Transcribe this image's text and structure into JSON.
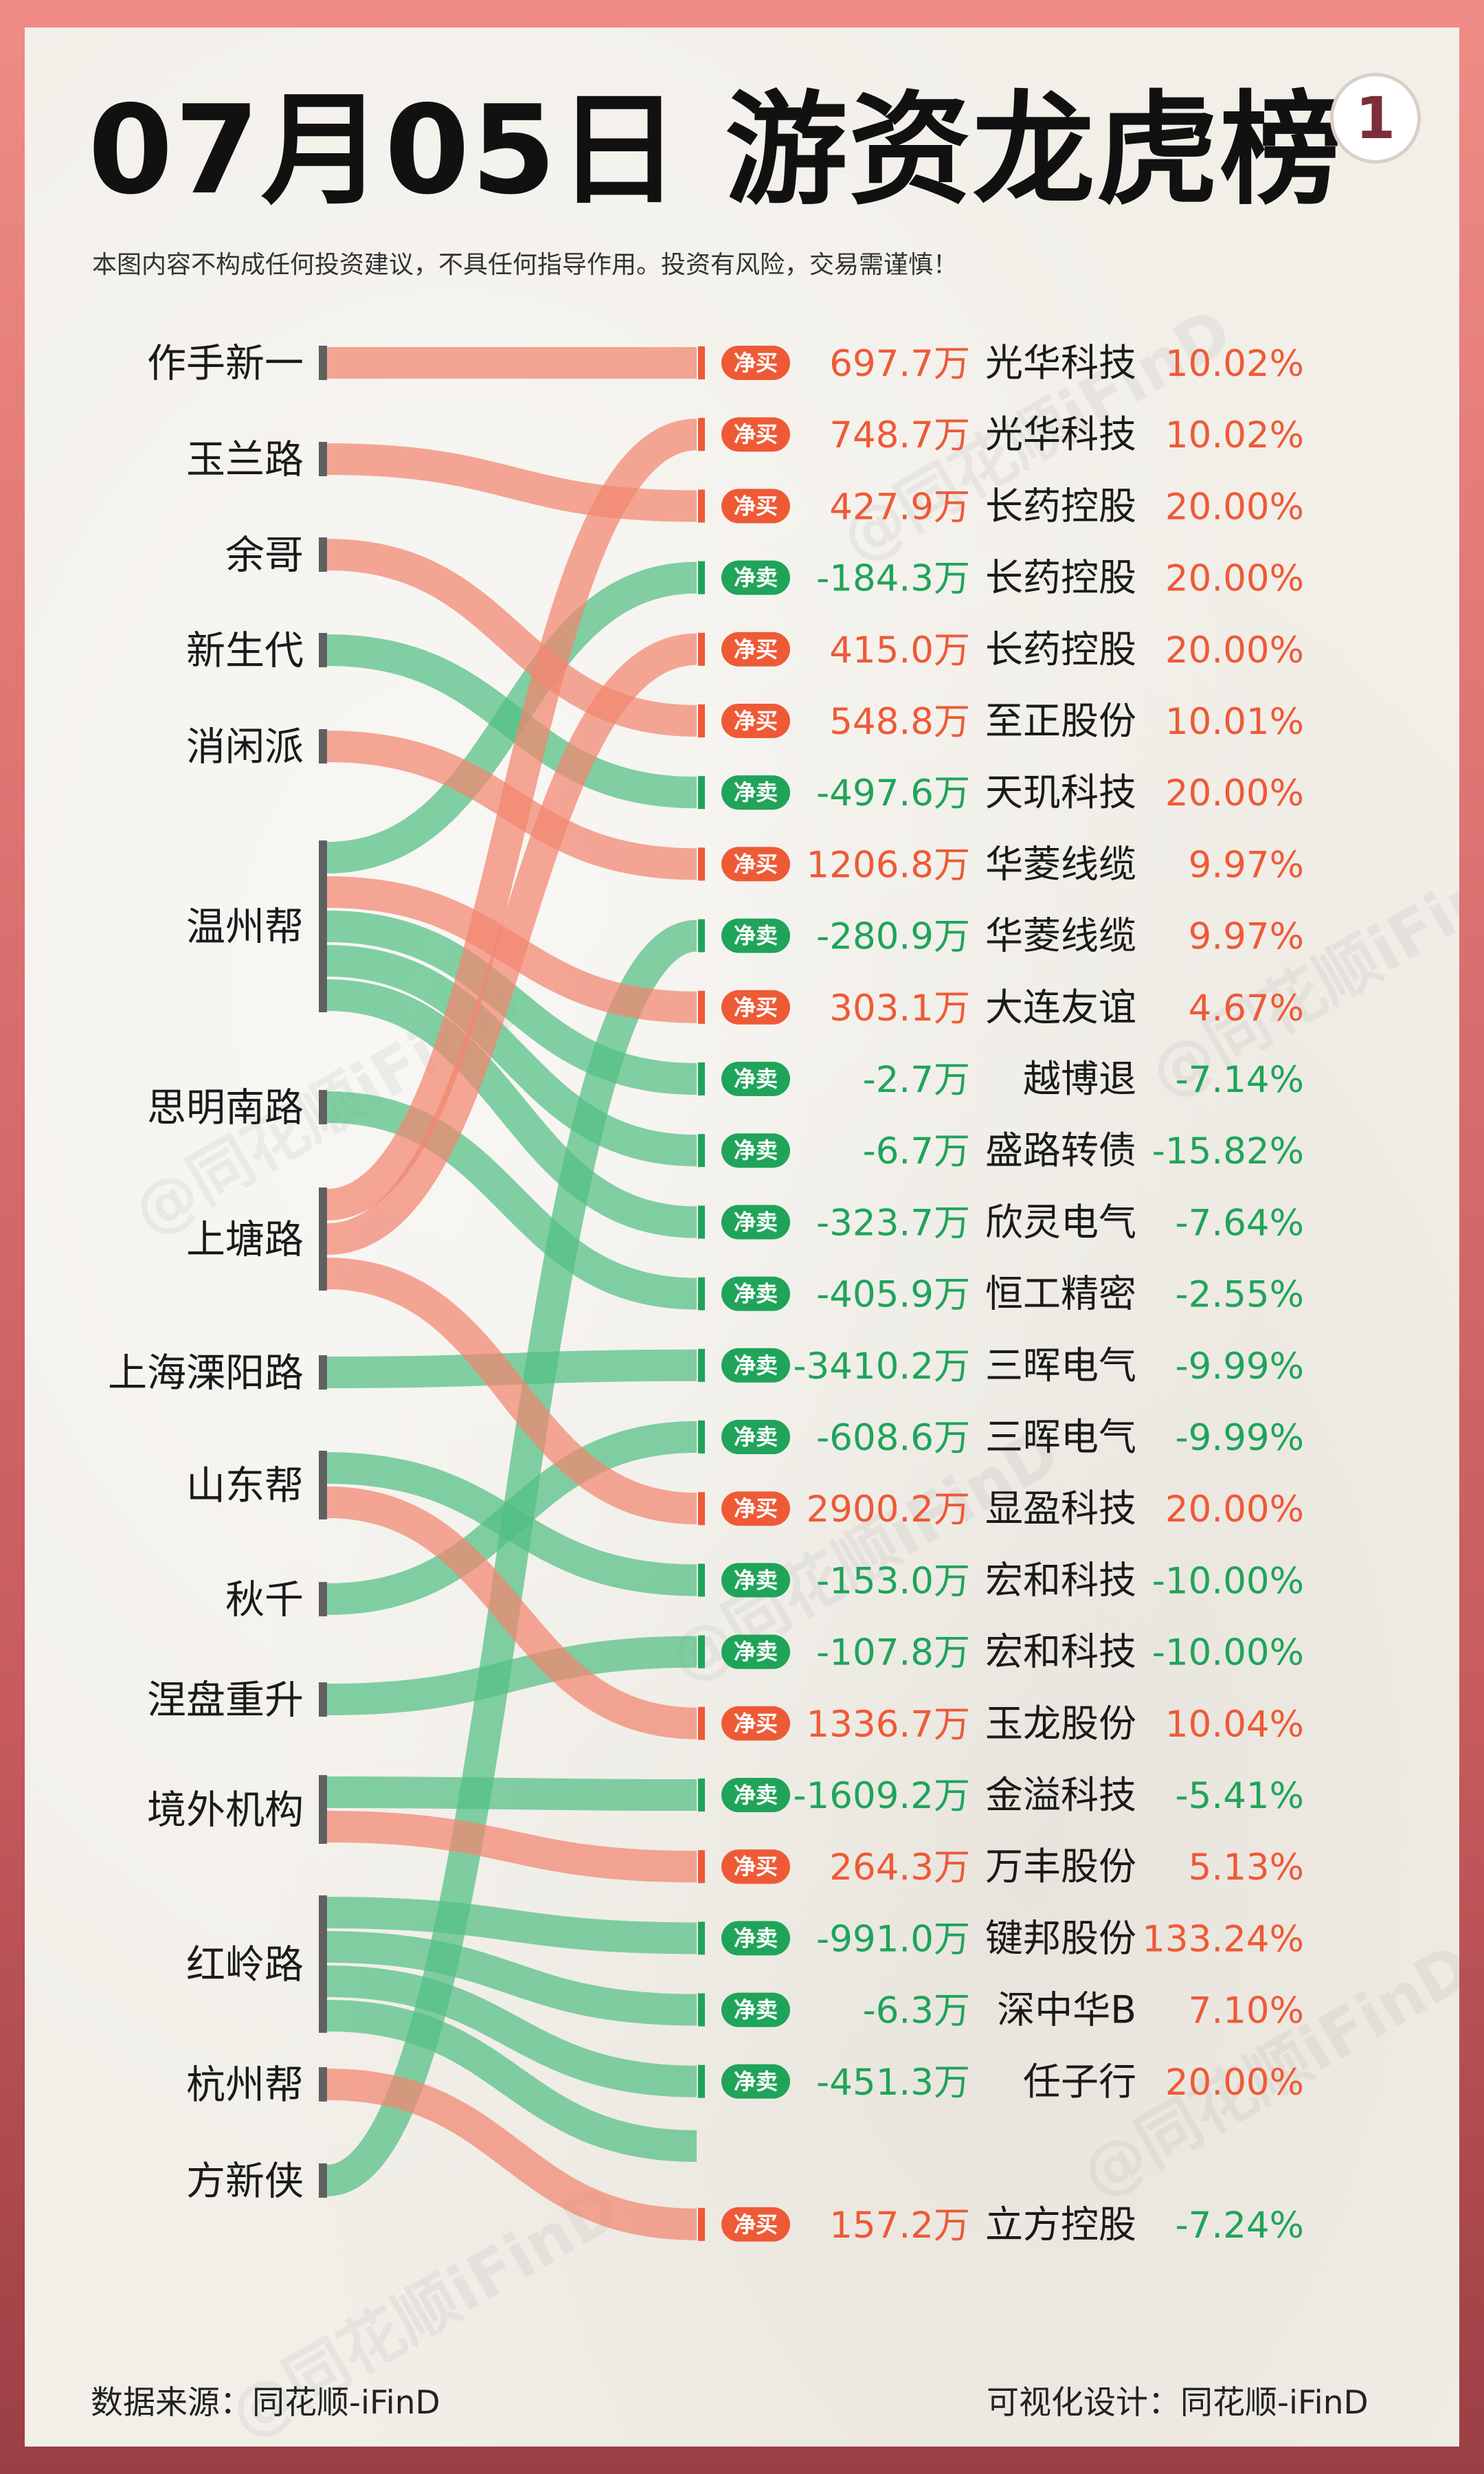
{
  "title": "07月05日 游资龙虎榜",
  "badge": "1",
  "disclaimer": "本图内容不构成任何投资建议，不具任何指导作用。投资有风险，交易需谨慎！",
  "footer": {
    "source": "数据来源：同花顺-iFinD",
    "design": "可视化设计：同花顺-iFinD"
  },
  "watermark_text": "@同花顺iFinD",
  "colors": {
    "buy": "#ee5a36",
    "sell": "#1fa45a",
    "buy_flow": "#f2856f",
    "sell_flow": "#52bf83",
    "node_bar": "#606060"
  },
  "chart_data": {
    "type": "sankey",
    "title": "07月05日 游资龙虎榜",
    "sources": [
      "作手新一",
      "玉兰路",
      "余哥",
      "新生代",
      "消闲派",
      "温州帮",
      "思明南路",
      "上塘路",
      "上海溧阳路",
      "山东帮",
      "秋千",
      "涅盘重升",
      "境外机构",
      "红岭路",
      "杭州帮",
      "方新侠"
    ],
    "flows": [
      {
        "source": "作手新一",
        "action": "净买",
        "amount": "697.7万",
        "stock": "光华科技",
        "change": "10.02%"
      },
      {
        "source": "上塘路",
        "action": "净买",
        "amount": "748.7万",
        "stock": "光华科技",
        "change": "10.02%"
      },
      {
        "source": "玉兰路",
        "action": "净买",
        "amount": "427.9万",
        "stock": "长药控股",
        "change": "20.00%"
      },
      {
        "source": "温州帮",
        "action": "净卖",
        "amount": "-184.3万",
        "stock": "长药控股",
        "change": "20.00%"
      },
      {
        "source": "上塘路",
        "action": "净买",
        "amount": "415.0万",
        "stock": "长药控股",
        "change": "20.00%"
      },
      {
        "source": "余哥",
        "action": "净买",
        "amount": "548.8万",
        "stock": "至正股份",
        "change": "10.01%"
      },
      {
        "source": "新生代",
        "action": "净卖",
        "amount": "-497.6万",
        "stock": "天玑科技",
        "change": "20.00%"
      },
      {
        "source": "消闲派",
        "action": "净买",
        "amount": "1206.8万",
        "stock": "华菱线缆",
        "change": "9.97%"
      },
      {
        "source": "方新侠",
        "action": "净卖",
        "amount": "-280.9万",
        "stock": "华菱线缆",
        "change": "9.97%"
      },
      {
        "source": "温州帮",
        "action": "净买",
        "amount": "303.1万",
        "stock": "大连友谊",
        "change": "4.67%"
      },
      {
        "source": "温州帮",
        "action": "净卖",
        "amount": "-2.7万",
        "stock": "越博退",
        "change": "-7.14%"
      },
      {
        "source": "温州帮",
        "action": "净卖",
        "amount": "-6.7万",
        "stock": "盛路转债",
        "change": "-15.82%"
      },
      {
        "source": "温州帮",
        "action": "净卖",
        "amount": "-323.7万",
        "stock": "欣灵电气",
        "change": "-7.64%"
      },
      {
        "source": "思明南路",
        "action": "净卖",
        "amount": "-405.9万",
        "stock": "恒工精密",
        "change": "-2.55%"
      },
      {
        "source": "上海溧阳路",
        "action": "净卖",
        "amount": "-3410.2万",
        "stock": "三晖电气",
        "change": "-9.99%"
      },
      {
        "source": "秋千",
        "action": "净卖",
        "amount": "-608.6万",
        "stock": "三晖电气",
        "change": "-9.99%"
      },
      {
        "source": "上塘路",
        "action": "净买",
        "amount": "2900.2万",
        "stock": "显盈科技",
        "change": "20.00%"
      },
      {
        "source": "山东帮",
        "action": "净卖",
        "amount": "-153.0万",
        "stock": "宏和科技",
        "change": "-10.00%"
      },
      {
        "source": "涅盘重升",
        "action": "净卖",
        "amount": "-107.8万",
        "stock": "宏和科技",
        "change": "-10.00%"
      },
      {
        "source": "山东帮",
        "action": "净买",
        "amount": "1336.7万",
        "stock": "玉龙股份",
        "change": "10.04%"
      },
      {
        "source": "境外机构",
        "action": "净卖",
        "amount": "-1609.2万",
        "stock": "金溢科技",
        "change": "-5.41%"
      },
      {
        "source": "境外机构",
        "action": "净买",
        "amount": "264.3万",
        "stock": "万丰股份",
        "change": "5.13%"
      },
      {
        "source": "红岭路",
        "action": "净卖",
        "amount": "-991.0万",
        "stock": "键邦股份",
        "change": "133.24%"
      },
      {
        "source": "红岭路",
        "action": "净卖",
        "amount": "-6.3万",
        "stock": "深中华B",
        "change": "7.10%"
      },
      {
        "source": "红岭路",
        "action": "净卖",
        "amount": "-451.3万",
        "stock": "任子行",
        "change": "20.00%"
      },
      {
        "source": "红岭路",
        "action": "净卖",
        "amount": "",
        "stock": "",
        "change": ""
      },
      {
        "source": "杭州帮",
        "action": "净买",
        "amount": "157.2万",
        "stock": "立方控股",
        "change": "-7.24%"
      }
    ]
  }
}
